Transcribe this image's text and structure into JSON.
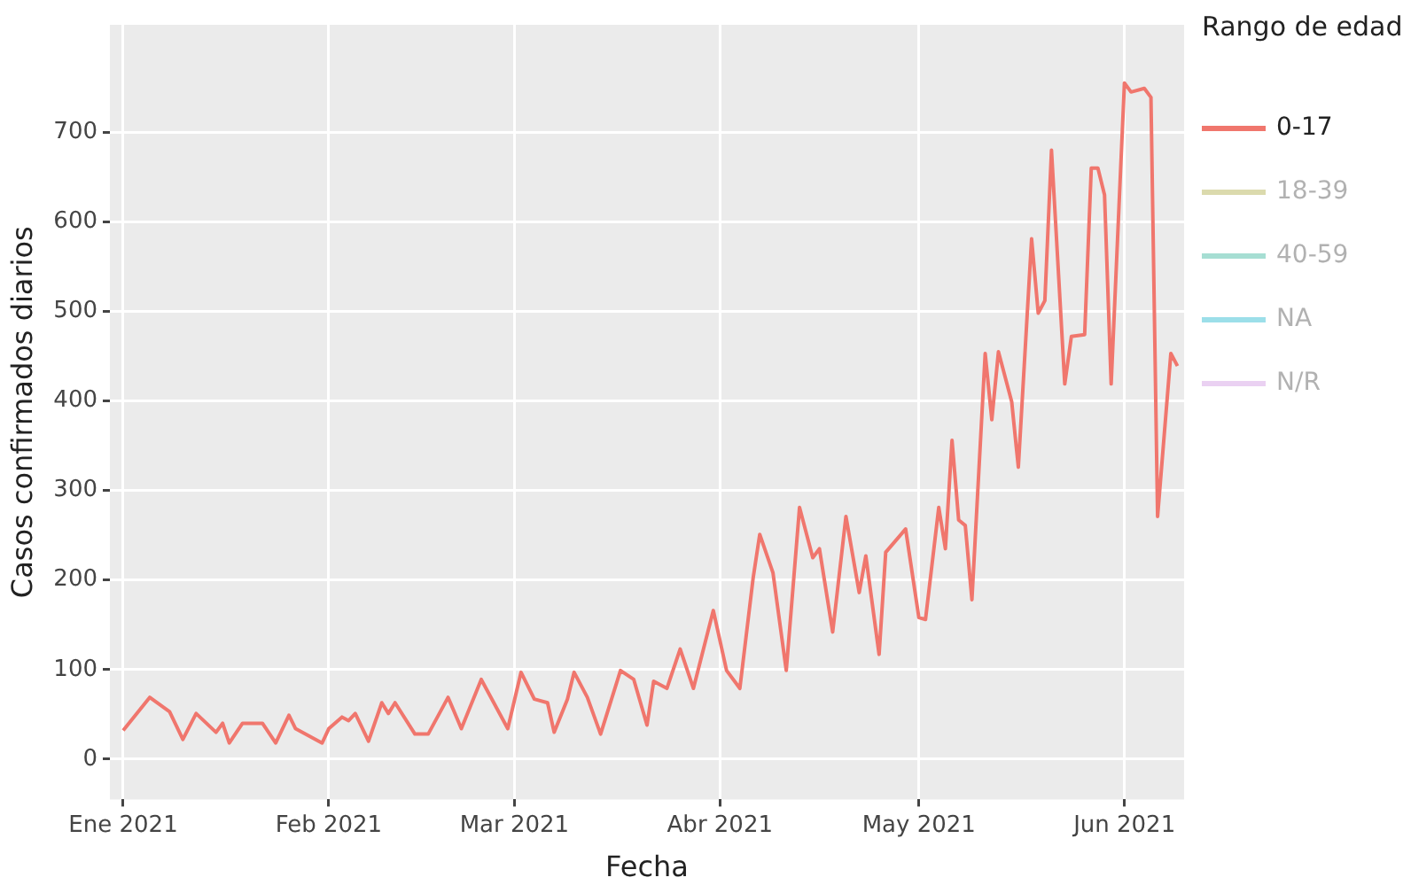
{
  "chart_data": {
    "type": "line",
    "xlabel": "Fecha",
    "ylabel": "Casos confirmados diarios",
    "legend_title": "Rango de edad",
    "legend": "right",
    "grid": true,
    "xlim": [
      "2020-12-30",
      "2021-06-10"
    ],
    "xticks": [
      {
        "value": "2021-01-01",
        "label": "Ene 2021"
      },
      {
        "value": "2021-02-01",
        "label": "Feb 2021"
      },
      {
        "value": "2021-03-01",
        "label": "Mar 2021"
      },
      {
        "value": "2021-04-01",
        "label": "Abr 2021"
      },
      {
        "value": "2021-05-01",
        "label": "May 2021"
      },
      {
        "value": "2021-06-01",
        "label": "Jun 2021"
      }
    ],
    "ylim": [
      -45,
      820
    ],
    "yticks": [
      0,
      100,
      200,
      300,
      400,
      500,
      600,
      700
    ],
    "series": [
      {
        "name": "0-17",
        "color": "#f0766d",
        "x": [
          "2021-01-01",
          "2021-01-05",
          "2021-01-08",
          "2021-01-10",
          "2021-01-12",
          "2021-01-15",
          "2021-01-16",
          "2021-01-17",
          "2021-01-19",
          "2021-01-22",
          "2021-01-24",
          "2021-01-26",
          "2021-01-27",
          "2021-01-31",
          "2021-02-01",
          "2021-02-03",
          "2021-02-04",
          "2021-02-05",
          "2021-02-07",
          "2021-02-09",
          "2021-02-10",
          "2021-02-11",
          "2021-02-14",
          "2021-02-16",
          "2021-02-19",
          "2021-02-21",
          "2021-02-24",
          "2021-02-28",
          "2021-03-02",
          "2021-03-04",
          "2021-03-06",
          "2021-03-07",
          "2021-03-09",
          "2021-03-10",
          "2021-03-12",
          "2021-03-14",
          "2021-03-17",
          "2021-03-19",
          "2021-03-21",
          "2021-03-22",
          "2021-03-24",
          "2021-03-26",
          "2021-03-28",
          "2021-03-31",
          "2021-04-02",
          "2021-04-04",
          "2021-04-06",
          "2021-04-07",
          "2021-04-09",
          "2021-04-11",
          "2021-04-13",
          "2021-04-15",
          "2021-04-16",
          "2021-04-18",
          "2021-04-20",
          "2021-04-22",
          "2021-04-23",
          "2021-04-25",
          "2021-04-26",
          "2021-04-29",
          "2021-05-01",
          "2021-05-02",
          "2021-05-04",
          "2021-05-05",
          "2021-05-06",
          "2021-05-07",
          "2021-05-08",
          "2021-05-09",
          "2021-05-11",
          "2021-05-12",
          "2021-05-13",
          "2021-05-15",
          "2021-05-16",
          "2021-05-18",
          "2021-05-19",
          "2021-05-20",
          "2021-05-21",
          "2021-05-23",
          "2021-05-24",
          "2021-05-26",
          "2021-05-27",
          "2021-05-28",
          "2021-05-29",
          "2021-05-30",
          "2021-06-01",
          "2021-06-02",
          "2021-06-04",
          "2021-06-05",
          "2021-06-06",
          "2021-06-08",
          "2021-06-09"
        ],
        "values": [
          32,
          69,
          53,
          22,
          51,
          30,
          40,
          18,
          40,
          40,
          18,
          49,
          34,
          18,
          34,
          47,
          43,
          51,
          20,
          63,
          51,
          63,
          28,
          28,
          69,
          34,
          89,
          34,
          97,
          67,
          63,
          30,
          67,
          97,
          69,
          28,
          99,
          89,
          38,
          87,
          79,
          123,
          79,
          166,
          99,
          79,
          202,
          251,
          208,
          99,
          281,
          225,
          235,
          142,
          271,
          186,
          227,
          117,
          231,
          257,
          158,
          156,
          281,
          235,
          356,
          267,
          261,
          178,
          453,
          379,
          455,
          399,
          326,
          581,
          498,
          512,
          680,
          419,
          472,
          474,
          660,
          660,
          630,
          419,
          755,
          745,
          749,
          739,
          271,
          453,
          439
        ]
      },
      {
        "name": "18-39",
        "color": "#b9b65e"
      },
      {
        "name": "40-59",
        "color": "#4fbfa8"
      },
      {
        "name": "NA",
        "color": "#3cc0d4"
      },
      {
        "name": "N/R",
        "color": "#d6a4e6"
      }
    ]
  }
}
